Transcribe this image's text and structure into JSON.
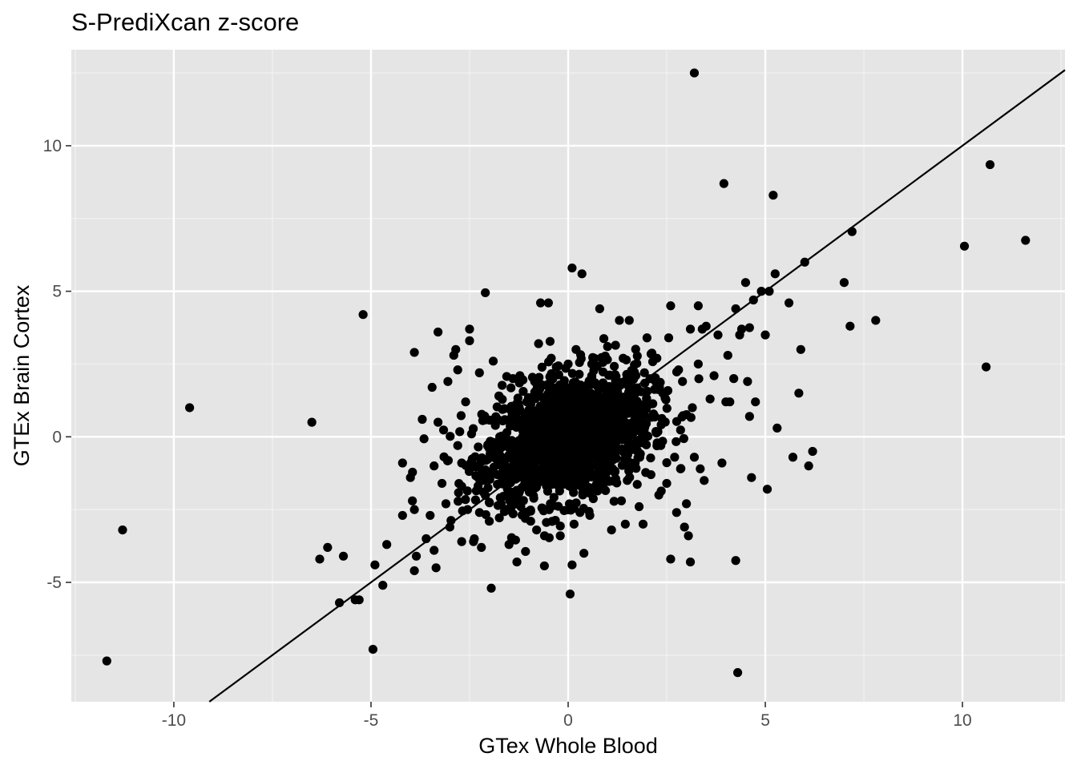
{
  "chart_data": {
    "type": "scatter",
    "title": "S-PrediXcan z-score",
    "xlabel": "GTex Whole Blood",
    "ylabel": "GTEx Brain Cortex",
    "xlim": [
      -12.6,
      12.6
    ],
    "ylim": [
      -9.1,
      13.3
    ],
    "x_ticks": [
      -10,
      -5,
      0,
      5,
      10
    ],
    "x_tick_labels": [
      "-10",
      "-5",
      "0",
      "5",
      "10"
    ],
    "y_ticks": [
      -5,
      0,
      5,
      10
    ],
    "y_tick_labels": [
      "-5",
      "0",
      "5",
      "10"
    ],
    "grid": true,
    "reference_line": {
      "type": "identity",
      "slope": 1,
      "intercept": 0
    },
    "points": [
      [
        -11.7,
        -7.7
      ],
      [
        -11.3,
        -3.2
      ],
      [
        -9.6,
        1.0
      ],
      [
        -6.5,
        0.5
      ],
      [
        -6.3,
        -4.2
      ],
      [
        -6.1,
        -3.8
      ],
      [
        -5.8,
        -5.7
      ],
      [
        -5.7,
        -4.1
      ],
      [
        -5.4,
        -5.6
      ],
      [
        -5.3,
        -5.6
      ],
      [
        -5.2,
        4.2
      ],
      [
        -4.95,
        -7.3
      ],
      [
        -4.9,
        -4.4
      ],
      [
        -4.7,
        -5.1
      ],
      [
        -4.6,
        -3.7
      ],
      [
        -4.2,
        -0.9
      ],
      [
        -4.2,
        -2.7
      ],
      [
        -4.0,
        -1.4
      ],
      [
        -3.95,
        -2.2
      ],
      [
        -3.9,
        -2.5
      ],
      [
        -3.9,
        -4.6
      ],
      [
        -3.85,
        -4.1
      ],
      [
        -3.9,
        2.9
      ],
      [
        -3.7,
        0.6
      ],
      [
        -3.6,
        -3.5
      ],
      [
        -3.5,
        -2.7
      ],
      [
        -3.45,
        1.7
      ],
      [
        -3.4,
        -1.0
      ],
      [
        -3.4,
        -3.9
      ],
      [
        -3.35,
        -4.5
      ],
      [
        -3.3,
        3.6
      ],
      [
        -3.3,
        0.5
      ],
      [
        -3.2,
        -1.6
      ],
      [
        -3.1,
        -2.3
      ],
      [
        -3.05,
        1.9
      ],
      [
        -3.0,
        -3.1
      ],
      [
        -2.9,
        2.8
      ],
      [
        -2.85,
        3.0
      ],
      [
        -2.8,
        2.3
      ],
      [
        -2.8,
        -0.3
      ],
      [
        -2.7,
        -3.6
      ],
      [
        -2.7,
        -1.7
      ],
      [
        -2.6,
        1.2
      ],
      [
        -2.55,
        -2.5
      ],
      [
        -2.5,
        3.3
      ],
      [
        -2.5,
        3.7
      ],
      [
        -2.45,
        0.1
      ],
      [
        -2.4,
        -3.6
      ],
      [
        -2.3,
        -1.0
      ],
      [
        -2.25,
        2.2
      ],
      [
        -2.2,
        -3.8
      ],
      [
        -2.15,
        -1.9
      ],
      [
        -2.1,
        0.6
      ],
      [
        -2.0,
        -0.4
      ],
      [
        -2.0,
        -2.9
      ],
      [
        -1.95,
        -5.2
      ],
      [
        -2.1,
        4.95
      ],
      [
        -1.9,
        2.6
      ],
      [
        -1.8,
        -1.3
      ],
      [
        -1.75,
        1.4
      ],
      [
        -1.7,
        -2.3
      ],
      [
        -1.6,
        -1.6
      ],
      [
        -1.5,
        -3.7
      ],
      [
        -1.45,
        -1.9
      ],
      [
        -1.4,
        2.0
      ],
      [
        -1.3,
        -4.3
      ],
      [
        -1.2,
        -2.4
      ],
      [
        -1.1,
        -0.8
      ],
      [
        -1.05,
        1.2
      ],
      [
        -0.95,
        -2.9
      ],
      [
        -0.9,
        -1.2
      ],
      [
        -0.85,
        1.9
      ],
      [
        -0.8,
        -3.2
      ],
      [
        -0.75,
        3.2
      ],
      [
        -0.7,
        4.6
      ],
      [
        -0.6,
        -3.4
      ],
      [
        -0.5,
        4.6
      ],
      [
        -0.45,
        -2.3
      ],
      [
        -0.4,
        1.7
      ],
      [
        -0.35,
        -1.5
      ],
      [
        -0.3,
        2.4
      ],
      [
        -0.2,
        -3.4
      ],
      [
        -0.1,
        -0.6
      ],
      [
        0.0,
        2.5
      ],
      [
        0.05,
        -5.4
      ],
      [
        0.1,
        -4.4
      ],
      [
        0.1,
        5.8
      ],
      [
        0.15,
        -3.0
      ],
      [
        0.2,
        3.0
      ],
      [
        0.3,
        -2.6
      ],
      [
        0.35,
        5.6
      ],
      [
        0.4,
        -4.0
      ],
      [
        0.5,
        1.2
      ],
      [
        0.55,
        -2.7
      ],
      [
        0.6,
        2.5
      ],
      [
        0.7,
        -0.4
      ],
      [
        0.8,
        4.4
      ],
      [
        0.9,
        -1.8
      ],
      [
        1.0,
        3.1
      ],
      [
        1.1,
        -3.2
      ],
      [
        1.2,
        1.8
      ],
      [
        1.3,
        4.0
      ],
      [
        1.35,
        -2.2
      ],
      [
        1.4,
        0.2
      ],
      [
        1.45,
        -3.0
      ],
      [
        1.5,
        -1.5
      ],
      [
        1.55,
        4.0
      ],
      [
        1.6,
        2.2
      ],
      [
        1.7,
        -0.9
      ],
      [
        1.8,
        -2.4
      ],
      [
        1.85,
        1.1
      ],
      [
        1.9,
        -3.0
      ],
      [
        2.0,
        3.4
      ],
      [
        2.1,
        -1.3
      ],
      [
        2.2,
        0.7
      ],
      [
        2.25,
        2.7
      ],
      [
        2.3,
        -2.0
      ],
      [
        2.35,
        -0.3
      ],
      [
        2.4,
        1.5
      ],
      [
        2.5,
        -1.6
      ],
      [
        2.55,
        3.4
      ],
      [
        2.6,
        4.5
      ],
      [
        2.6,
        -4.2
      ],
      [
        2.7,
        -0.7
      ],
      [
        2.75,
        -2.6
      ],
      [
        2.8,
        2.3
      ],
      [
        2.85,
        -1.1
      ],
      [
        2.9,
        1.9
      ],
      [
        2.95,
        -3.1
      ],
      [
        3.0,
        -2.3
      ],
      [
        3.05,
        -3.4
      ],
      [
        3.1,
        -4.3
      ],
      [
        3.1,
        3.7
      ],
      [
        3.15,
        1.0
      ],
      [
        3.2,
        -0.7
      ],
      [
        3.2,
        12.5
      ],
      [
        3.3,
        4.5
      ],
      [
        3.3,
        2.5
      ],
      [
        3.35,
        -1.1
      ],
      [
        3.4,
        3.7
      ],
      [
        3.45,
        -1.5
      ],
      [
        3.5,
        3.8
      ],
      [
        3.6,
        1.3
      ],
      [
        3.7,
        2.1
      ],
      [
        3.8,
        3.5
      ],
      [
        3.9,
        -0.9
      ],
      [
        3.95,
        8.7
      ],
      [
        4.0,
        1.2
      ],
      [
        4.05,
        2.8
      ],
      [
        4.1,
        1.2
      ],
      [
        4.2,
        2.0
      ],
      [
        4.25,
        -4.25
      ],
      [
        4.25,
        4.4
      ],
      [
        4.3,
        -8.1
      ],
      [
        4.35,
        3.5
      ],
      [
        4.4,
        3.7
      ],
      [
        4.5,
        5.3
      ],
      [
        4.55,
        1.9
      ],
      [
        4.6,
        3.75
      ],
      [
        4.6,
        0.7
      ],
      [
        4.65,
        -1.4
      ],
      [
        4.7,
        4.7
      ],
      [
        4.75,
        1.2
      ],
      [
        4.9,
        5.0
      ],
      [
        5.0,
        3.5
      ],
      [
        5.05,
        -1.8
      ],
      [
        5.1,
        5.0
      ],
      [
        5.2,
        8.3
      ],
      [
        5.25,
        5.6
      ],
      [
        5.3,
        0.3
      ],
      [
        5.6,
        4.6
      ],
      [
        5.7,
        -0.7
      ],
      [
        5.85,
        1.5
      ],
      [
        5.9,
        3.0
      ],
      [
        6.0,
        6.0
      ],
      [
        6.1,
        -1.0
      ],
      [
        6.2,
        -0.5
      ],
      [
        7.0,
        5.3
      ],
      [
        7.15,
        3.8
      ],
      [
        7.2,
        7.05
      ],
      [
        7.8,
        4.0
      ],
      [
        10.05,
        6.55
      ],
      [
        10.6,
        2.4
      ],
      [
        10.7,
        9.35
      ],
      [
        11.6,
        6.75
      ]
    ]
  }
}
